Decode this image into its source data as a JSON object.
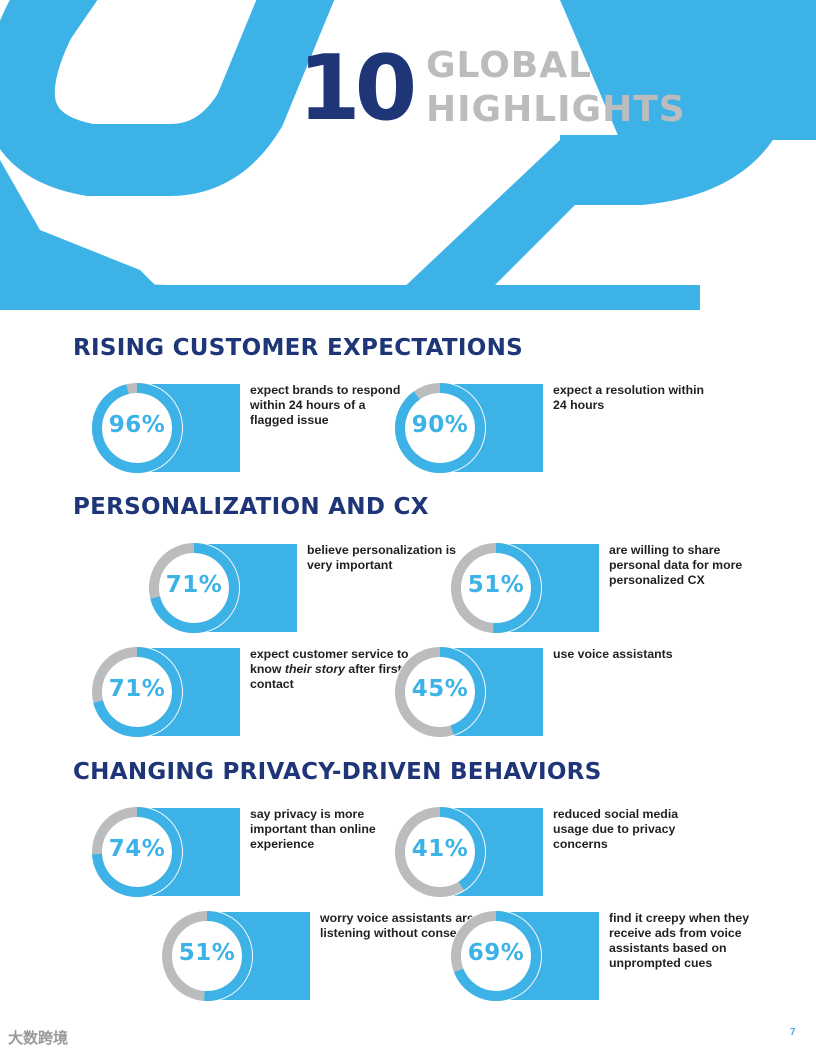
{
  "header": {
    "number": "10",
    "title_line1": "GLOBAL",
    "title_line2": "HIGHLIGHTS"
  },
  "colors": {
    "accent": "#3db2e6",
    "navy": "#1e3578",
    "ring_track": "#babcbe",
    "title_gray": "#babcbe"
  },
  "sections": [
    {
      "heading": "RISING CUSTOMER EXPECTATIONS",
      "stats": [
        {
          "percent": 96,
          "label": "96%",
          "description": "expect brands to respond within 24 hours of a flagged issue"
        },
        {
          "percent": 90,
          "label": "90%",
          "description": "expect a resolution within 24 hours"
        }
      ]
    },
    {
      "heading": "PERSONALIZATION AND CX",
      "stats": [
        {
          "percent": 71,
          "label": "71%",
          "description": "believe personalization is very important"
        },
        {
          "percent": 51,
          "label": "51%",
          "description": "are willing to share personal data for more personalized CX"
        },
        {
          "percent": 71,
          "label": "71%",
          "desc_pre": "expect customer service to know ",
          "desc_italic": "their story",
          "desc_post": " after first contact"
        },
        {
          "percent": 45,
          "label": "45%",
          "description": "use voice assistants"
        }
      ]
    },
    {
      "heading": "CHANGING PRIVACY-DRIVEN BEHAVIORS",
      "stats": [
        {
          "percent": 74,
          "label": "74%",
          "description": "say privacy is more important than online experience"
        },
        {
          "percent": 41,
          "label": "41%",
          "description": "reduced social media usage due to privacy concerns"
        },
        {
          "percent": 51,
          "label": "51%",
          "description": "worry voice assistants are listening without consent"
        },
        {
          "percent": 69,
          "label": "69%",
          "description": "find it creepy when they receive ads from voice assistants based on unprompted cues"
        }
      ]
    }
  ],
  "footer": {
    "page_number": "7",
    "watermark": "大数跨境"
  }
}
